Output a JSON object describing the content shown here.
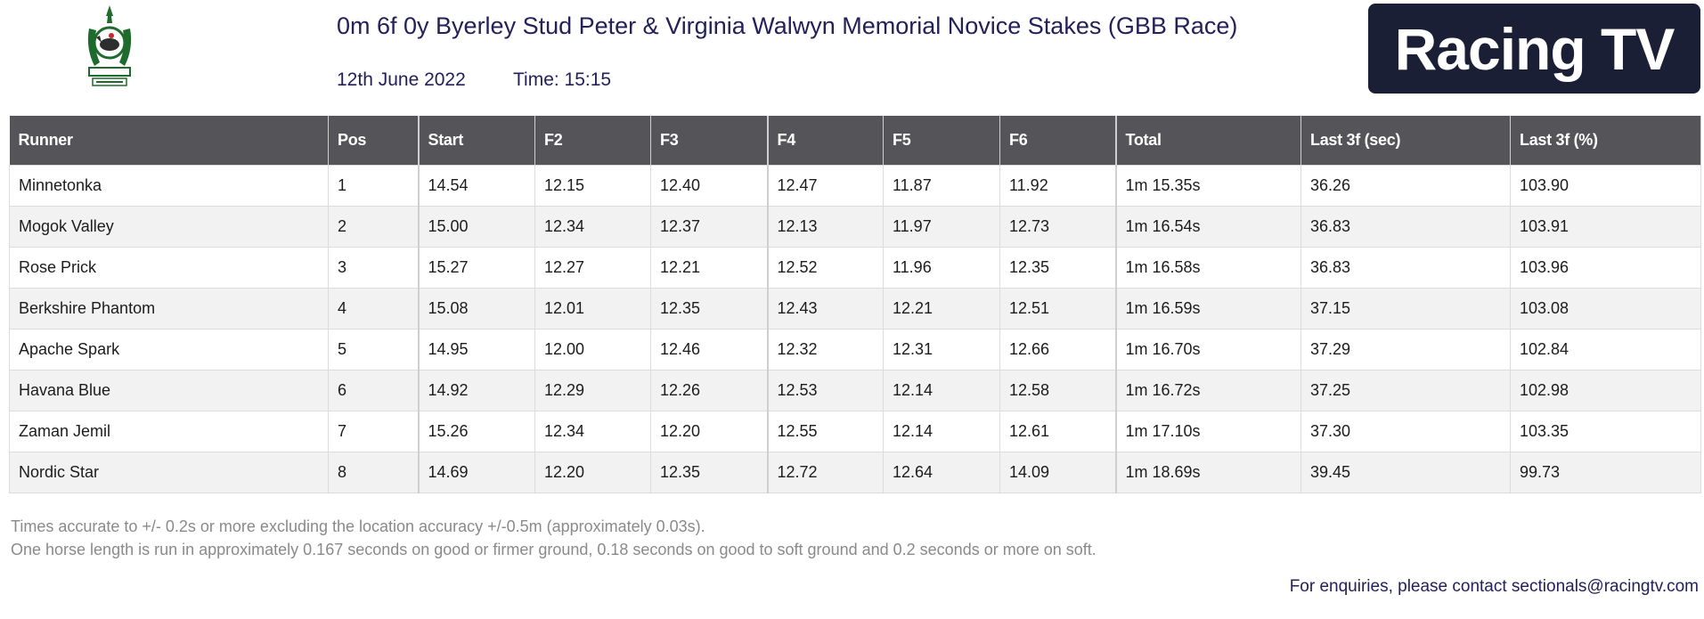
{
  "header": {
    "title": "0m 6f 0y Byerley Stud Peter & Virginia Walwyn Memorial Novice Stakes (GBB Race)",
    "date": "12th June 2022",
    "time": "Time: 15:15",
    "brand": "Racing TV",
    "logo_icon": "jockey-club-crest-icon",
    "accent_color": "#23205a",
    "brand_bg_color": "#1a1f35"
  },
  "table": {
    "headers": [
      "Runner",
      "Pos",
      "Start",
      "F2",
      "F3",
      "F4",
      "F5",
      "F6",
      "Total",
      "Last 3f (sec)",
      "Last 3f (%)"
    ],
    "header_bg_color": "#555458",
    "rows": [
      [
        "Minnetonka",
        "1",
        "14.54",
        "12.15",
        "12.40",
        "12.47",
        "11.87",
        "11.92",
        "1m 15.35s",
        "36.26",
        "103.90"
      ],
      [
        "Mogok Valley",
        "2",
        "15.00",
        "12.34",
        "12.37",
        "12.13",
        "11.97",
        "12.73",
        "1m 16.54s",
        "36.83",
        "103.91"
      ],
      [
        "Rose Prick",
        "3",
        "15.27",
        "12.27",
        "12.21",
        "12.52",
        "11.96",
        "12.35",
        "1m 16.58s",
        "36.83",
        "103.96"
      ],
      [
        "Berkshire Phantom",
        "4",
        "15.08",
        "12.01",
        "12.35",
        "12.43",
        "12.21",
        "12.51",
        "1m 16.59s",
        "37.15",
        "103.08"
      ],
      [
        "Apache Spark",
        "5",
        "14.95",
        "12.00",
        "12.46",
        "12.32",
        "12.31",
        "12.66",
        "1m 16.70s",
        "37.29",
        "102.84"
      ],
      [
        "Havana Blue",
        "6",
        "14.92",
        "12.29",
        "12.26",
        "12.53",
        "12.14",
        "12.58",
        "1m 16.72s",
        "37.25",
        "102.98"
      ],
      [
        "Zaman Jemil",
        "7",
        "15.26",
        "12.34",
        "12.20",
        "12.55",
        "12.14",
        "12.61",
        "1m 17.10s",
        "37.30",
        "103.35"
      ],
      [
        "Nordic Star",
        "8",
        "14.69",
        "12.20",
        "12.35",
        "12.72",
        "12.64",
        "14.09",
        "1m 18.69s",
        "39.45",
        "99.73"
      ]
    ]
  },
  "notes": [
    "Times accurate to +/- 0.2s or more excluding the location accuracy +/-0.5m (approximately 0.03s).",
    "One horse length is run in approximately 0.167 seconds on good or firmer ground, 0.18 seconds on good to soft ground and 0.2 seconds or more on soft."
  ],
  "contact": "For enquiries, please contact sectionals@racingtv.com"
}
